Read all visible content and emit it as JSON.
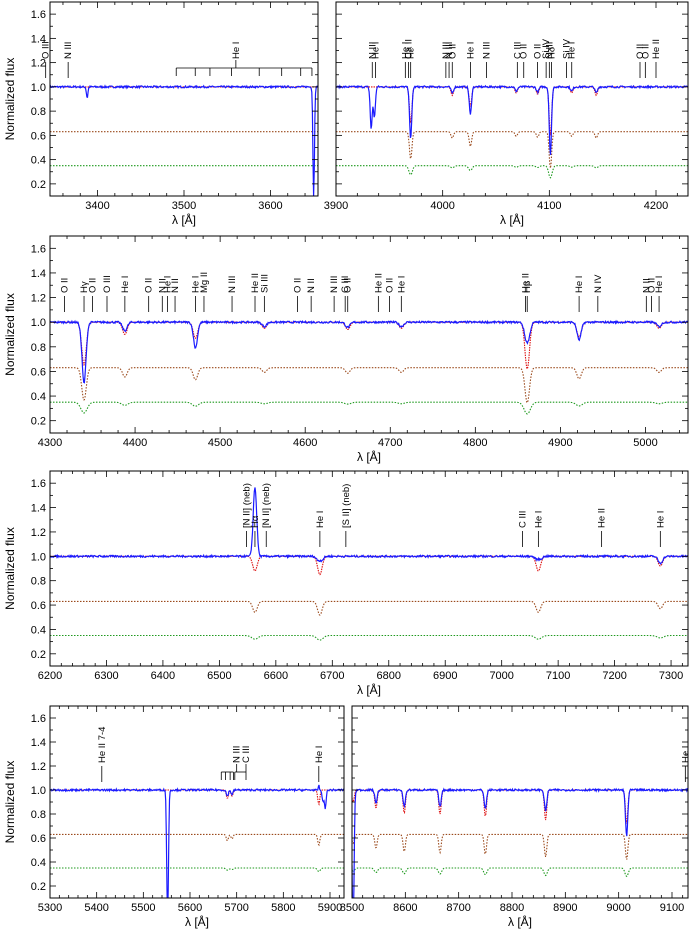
{
  "chart_data": [
    {
      "type": "line",
      "xlabel": "λ [Å]",
      "ylabel": "Normalized flux",
      "xlim": [
        3345,
        3655
      ],
      "ylim": [
        0.1,
        1.7
      ],
      "xticks": [
        3400,
        3500,
        3600
      ],
      "yticks": [
        0.2,
        0.4,
        0.6,
        0.8,
        1.0,
        1.2,
        1.4,
        1.6
      ],
      "lines": [
        {
          "text": "O III",
          "x": 3340
        },
        {
          "text": "N III",
          "x": 3366
        },
        {
          "text": "He I",
          "x": 3560,
          "group": [
            3491,
            3513,
            3530,
            3555,
            3587,
            3613,
            3635,
            3648
          ]
        }
      ],
      "features": {
        "observed": [
          [
            3388,
            -0.09
          ],
          [
            3650,
            -0.9
          ]
        ],
        "model": []
      }
    },
    {
      "type": "line",
      "xlabel": "λ [Å]",
      "ylabel": "",
      "xlim": [
        3900,
        4230
      ],
      "ylim": [
        0.1,
        1.7
      ],
      "xticks": [
        3900,
        4000,
        4100,
        4200
      ],
      "yticks": [
        0.2,
        0.4,
        0.6,
        0.8,
        1.0,
        1.2,
        1.4,
        1.6
      ],
      "lines": [
        {
          "text": "N III",
          "x": 3934
        },
        {
          "text": "He I",
          "x": 3937
        },
        {
          "text": "Ca II",
          "x": 3968
        },
        {
          "text": "He I",
          "x": 3965
        },
        {
          "text": "Hε",
          "x": 3970
        },
        {
          "text": "N III",
          "x": 4003
        },
        {
          "text": "N III",
          "x": 4006
        },
        {
          "text": "O II",
          "x": 4009
        },
        {
          "text": "He I",
          "x": 4026
        },
        {
          "text": "N III",
          "x": 4041
        },
        {
          "text": "C III",
          "x": 4070
        },
        {
          "text": "O II",
          "x": 4076
        },
        {
          "text": "O II",
          "x": 4089
        },
        {
          "text": "Si IV",
          "x": 4097
        },
        {
          "text": "N III",
          "x": 4100
        },
        {
          "text": "Hδ",
          "x": 4102
        },
        {
          "text": "Si IV",
          "x": 4116
        },
        {
          "text": "He I",
          "x": 4121
        },
        {
          "text": "O II",
          "x": 4185
        },
        {
          "text": "O II",
          "x": 4190
        },
        {
          "text": "He II",
          "x": 4200
        }
      ],
      "features": {
        "observed": [
          [
            3933,
            -0.35
          ],
          [
            3936,
            -0.25
          ],
          [
            3970,
            -0.22
          ],
          [
            4026,
            -0.12
          ],
          [
            4101,
            -0.28
          ]
        ],
        "model": [
          [
            3970,
            -0.3
          ],
          [
            4009,
            -0.07
          ],
          [
            4026,
            -0.16
          ],
          [
            4069,
            -0.05
          ],
          [
            4089,
            -0.06
          ],
          [
            4101,
            -0.4
          ],
          [
            4121,
            -0.05
          ],
          [
            4144,
            -0.07
          ]
        ]
      }
    },
    {
      "type": "line",
      "xlabel": "λ [Å]",
      "ylabel": "Normalized flux",
      "xlim": [
        4300,
        5050
      ],
      "ylim": [
        0.1,
        1.7
      ],
      "xticks": [
        4300,
        4400,
        4500,
        4600,
        4700,
        4800,
        4900,
        5000
      ],
      "yticks": [
        0.2,
        0.4,
        0.6,
        0.8,
        1.0,
        1.2,
        1.4,
        1.6
      ],
      "lines": [
        {
          "text": "O II",
          "x": 4317
        },
        {
          "text": "Hγ",
          "x": 4340
        },
        {
          "text": "O II",
          "x": 4350
        },
        {
          "text": "O III",
          "x": 4367
        },
        {
          "text": "He I",
          "x": 4388
        },
        {
          "text": "O II",
          "x": 4416
        },
        {
          "text": "N II",
          "x": 4432
        },
        {
          "text": "He I",
          "x": 4438
        },
        {
          "text": "N II",
          "x": 4447
        },
        {
          "text": "He I",
          "x": 4471
        },
        {
          "text": "Mg II",
          "x": 4481
        },
        {
          "text": "N III",
          "x": 4514
        },
        {
          "text": "He II",
          "x": 4541
        },
        {
          "text": "Si III",
          "x": 4552
        },
        {
          "text": "O II",
          "x": 4591
        },
        {
          "text": "N II",
          "x": 4607
        },
        {
          "text": "N III",
          "x": 4634
        },
        {
          "text": "C III",
          "x": 4647
        },
        {
          "text": "O II",
          "x": 4650
        },
        {
          "text": "He II",
          "x": 4686
        },
        {
          "text": "O II",
          "x": 4699
        },
        {
          "text": "He I",
          "x": 4713
        },
        {
          "text": "He II",
          "x": 4859
        },
        {
          "text": "Hβ",
          "x": 4861
        },
        {
          "text": "He I",
          "x": 4922
        },
        {
          "text": "N IV",
          "x": 4944
        },
        {
          "text": "N II",
          "x": 5001
        },
        {
          "text": "O II",
          "x": 5007
        },
        {
          "text": "He I",
          "x": 5016
        }
      ],
      "features": {
        "observed": [
          [
            4340,
            -0.25
          ],
          [
            4471,
            -0.12
          ],
          [
            4861,
            0.1
          ],
          [
            4922,
            -0.06
          ]
        ],
        "model": [
          [
            4340,
            -0.35
          ],
          [
            4388,
            -0.1
          ],
          [
            4471,
            -0.13
          ],
          [
            4552,
            -0.05
          ],
          [
            4650,
            -0.06
          ],
          [
            4713,
            -0.05
          ],
          [
            4861,
            -0.38
          ],
          [
            4922,
            -0.12
          ],
          [
            5016,
            -0.05
          ]
        ]
      }
    },
    {
      "type": "line",
      "xlabel": "λ [Å]",
      "ylabel": "Normalized flux",
      "xlim": [
        6200,
        7330
      ],
      "ylim": [
        0.1,
        1.7
      ],
      "xticks": [
        6200,
        6300,
        6400,
        6500,
        6600,
        6700,
        6800,
        6900,
        7000,
        7100,
        7200,
        7300
      ],
      "yticks": [
        0.2,
        0.4,
        0.6,
        0.8,
        1.0,
        1.2,
        1.4,
        1.6
      ],
      "lines": [
        {
          "text": "[N II] (neb)",
          "x": 6548
        },
        {
          "text": "Hα",
          "x": 6563
        },
        {
          "text": "[N II] (neb)",
          "x": 6583
        },
        {
          "text": "He I",
          "x": 6678
        },
        {
          "text": "[S II] (neb)",
          "x": 6724
        },
        {
          "text": "C III",
          "x": 7037
        },
        {
          "text": "He I",
          "x": 7065
        },
        {
          "text": "He II",
          "x": 7177
        },
        {
          "text": "He I",
          "x": 7281
        }
      ],
      "features": {
        "observed": [
          [
            6563,
            0.65
          ],
          [
            6678,
            0.07
          ],
          [
            7065,
            0.06
          ]
        ],
        "model": [
          [
            6563,
            -0.12
          ],
          [
            6678,
            -0.15
          ],
          [
            7065,
            -0.12
          ],
          [
            7281,
            -0.08
          ]
        ]
      }
    },
    {
      "type": "line",
      "xlabel": "λ [Å]",
      "ylabel": "Normalized flux",
      "xlim": [
        5300,
        5930
      ],
      "ylim": [
        0.1,
        1.7
      ],
      "xticks": [
        5300,
        5400,
        5500,
        5600,
        5700,
        5800,
        5900
      ],
      "yticks": [
        0.2,
        0.4,
        0.6,
        0.8,
        1.0,
        1.2,
        1.4,
        1.6
      ],
      "lines": [
        {
          "text": "He II 7-4",
          "x": 5411
        },
        {
          "text": "N III",
          "x": 5700,
          "group": [
            5667,
            5676,
            5686,
            5693
          ]
        },
        {
          "text": "C III",
          "x": 5720,
          "group": [
            5696,
            5720
          ]
        },
        {
          "text": "He I",
          "x": 5876
        }
      ],
      "features": {
        "observed": [
          [
            5552,
            -1.1
          ],
          [
            5876,
            0.12
          ],
          [
            5885,
            -0.1
          ],
          [
            5890,
            -0.15
          ]
        ],
        "model": [
          [
            5680,
            -0.07
          ],
          [
            5690,
            -0.05
          ],
          [
            5876,
            -0.12
          ]
        ]
      }
    },
    {
      "type": "line",
      "xlabel": "λ [Å]",
      "ylabel": "",
      "xlim": [
        8500,
        9130
      ],
      "ylim": [
        0.1,
        1.7
      ],
      "xticks": [
        8500,
        8600,
        8700,
        8800,
        8900,
        9000,
        9100
      ],
      "yticks": [
        0.2,
        0.4,
        0.6,
        0.8,
        1.0,
        1.2,
        1.4,
        1.6
      ],
      "lines": [
        {
          "text": "He I",
          "x": 9125
        }
      ],
      "features": {
        "observed": [
          [
            8502,
            -1.1
          ],
          [
            9014,
            -0.12
          ],
          [
            9016,
            -0.1
          ]
        ],
        "model": [
          [
            8502,
            -0.1
          ],
          [
            8545,
            -0.15
          ],
          [
            8598,
            -0.19
          ],
          [
            8665,
            -0.2
          ],
          [
            8750,
            -0.22
          ],
          [
            8863,
            -0.25
          ],
          [
            9015,
            -0.28
          ]
        ]
      }
    }
  ]
}
